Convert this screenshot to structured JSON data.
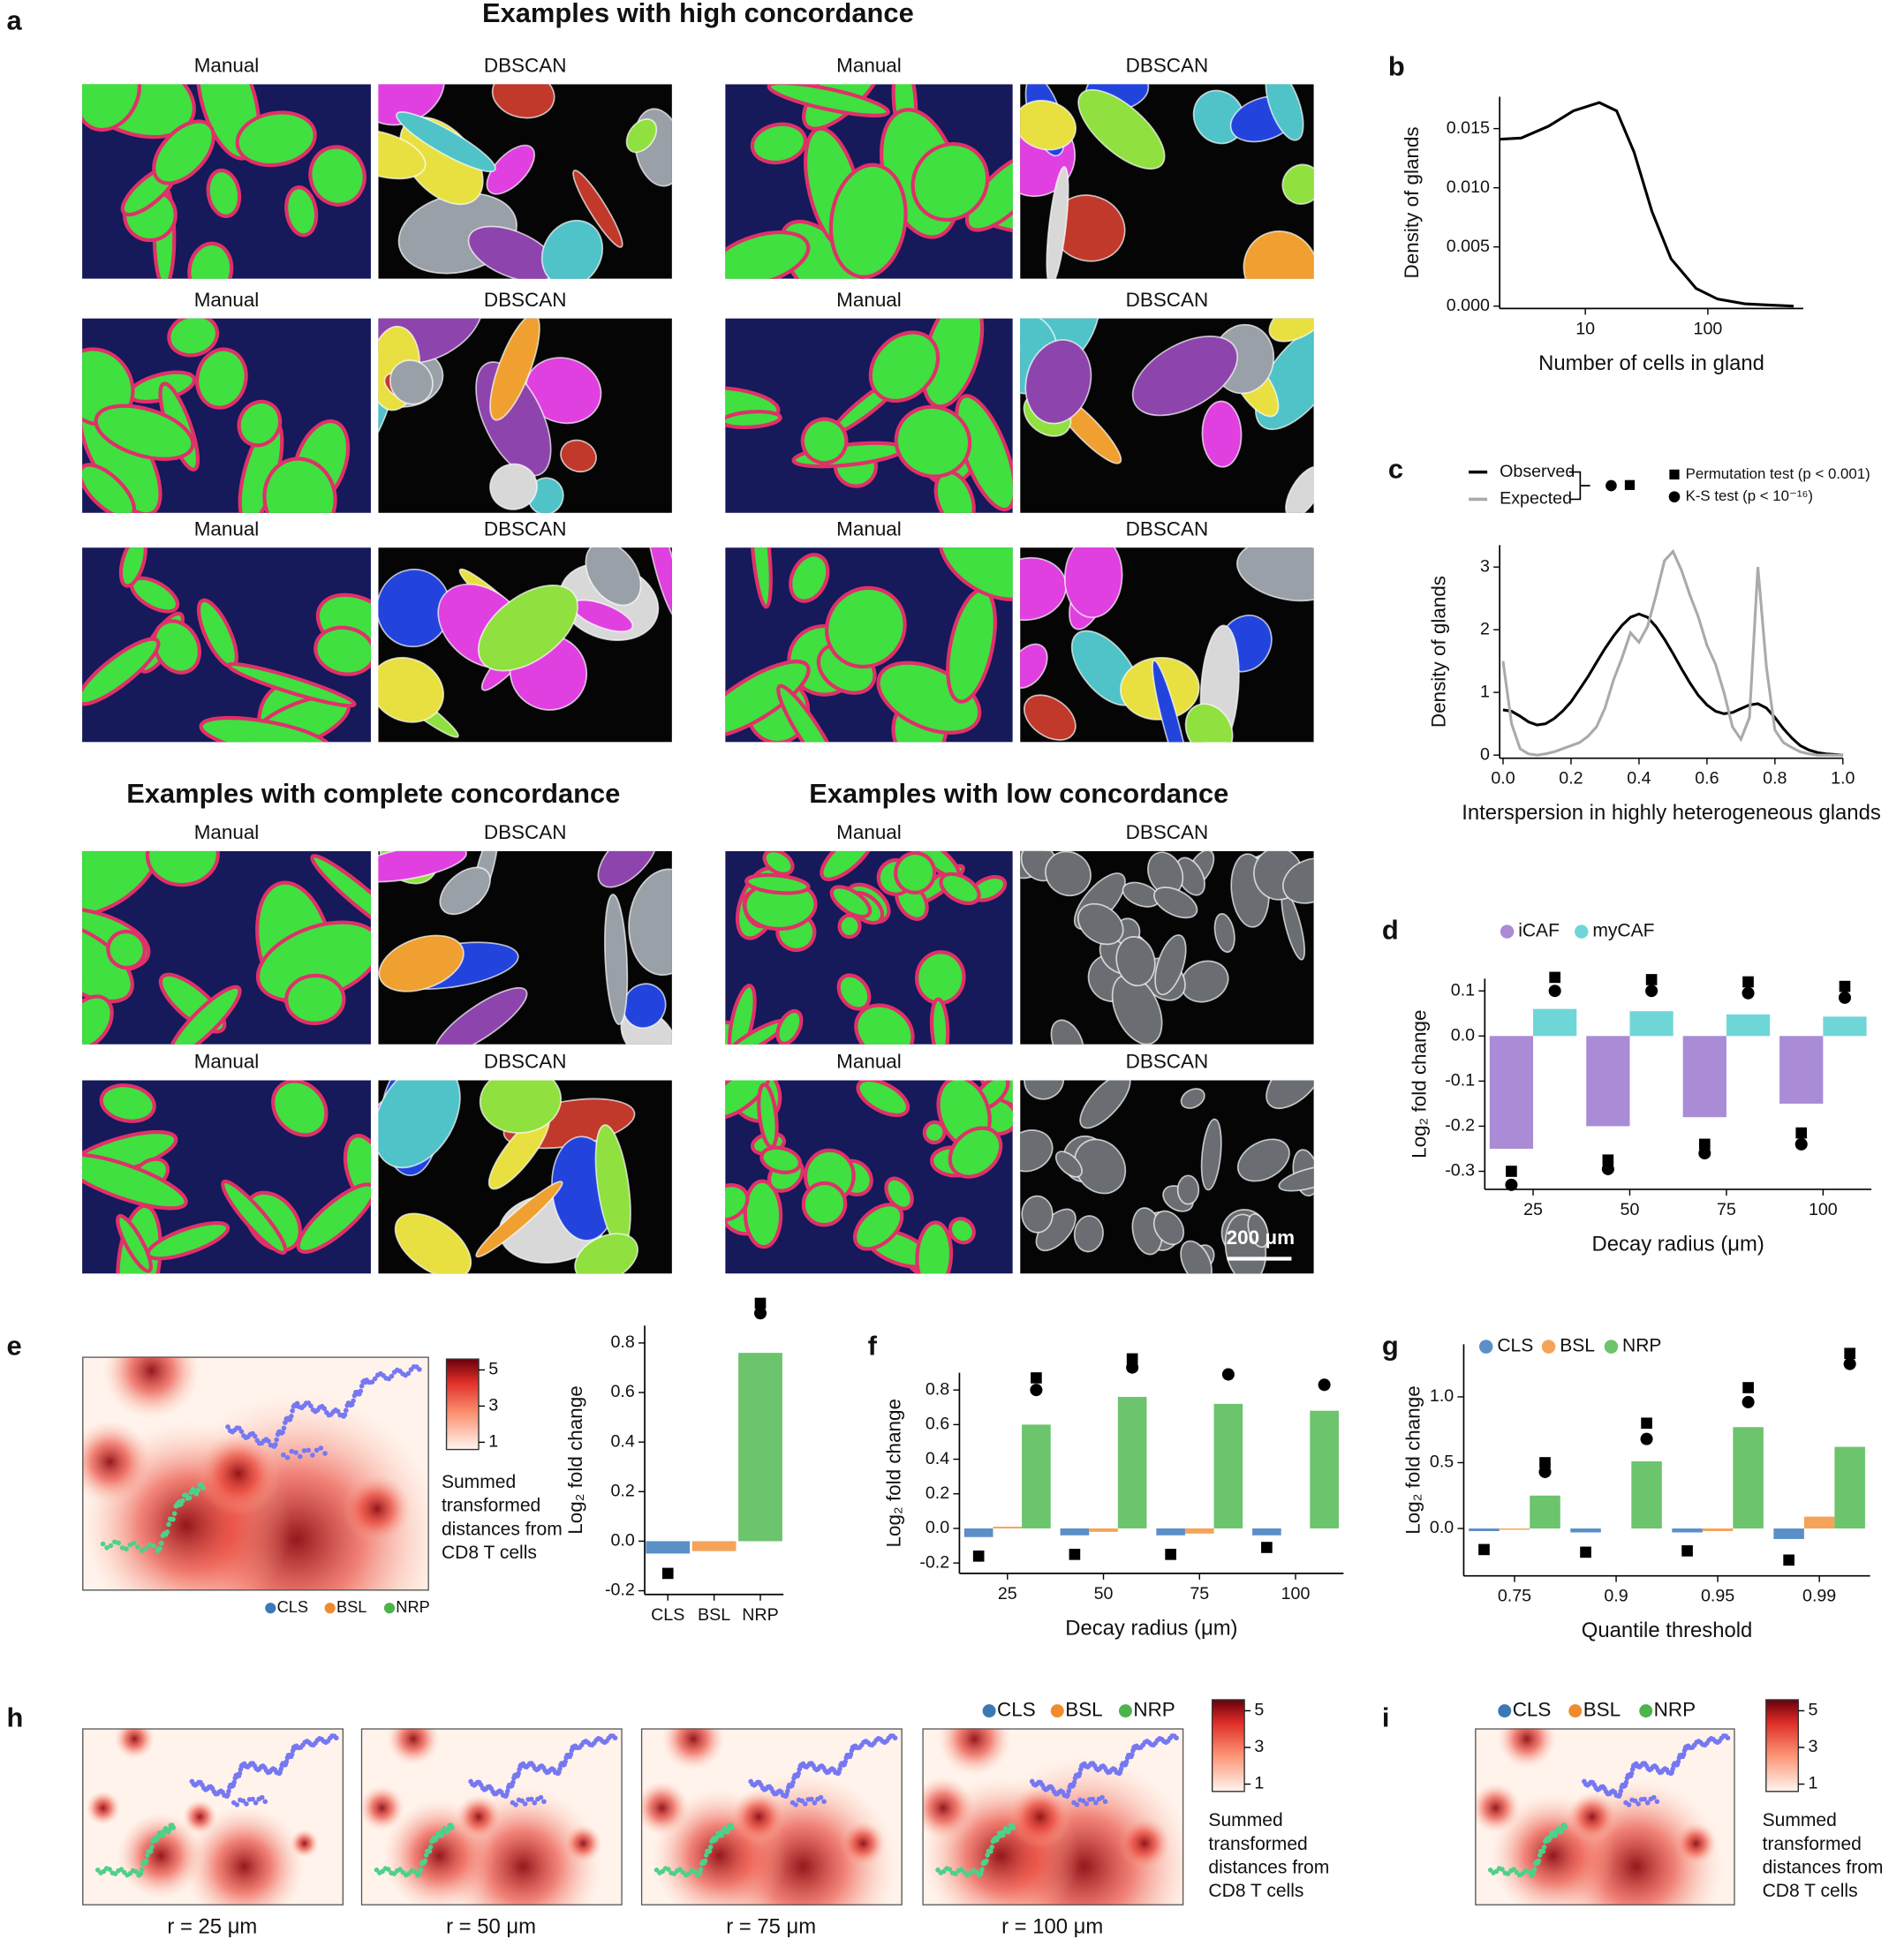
{
  "panel_labels": [
    "a",
    "b",
    "c",
    "d",
    "e",
    "f",
    "g",
    "h",
    "i"
  ],
  "figure_a": {
    "sections": [
      {
        "title": "Examples with high concordance",
        "rows": [
          [
            "Manual",
            "DBSCAN",
            "Manual",
            "DBSCAN"
          ],
          [
            "Manual",
            "DBSCAN",
            "Manual",
            "DBSCAN"
          ],
          [
            "Manual",
            "DBSCAN",
            "Manual",
            "DBSCAN"
          ]
        ]
      },
      {
        "title": "Examples with complete concordance",
        "rows": [
          [
            "Manual",
            "DBSCAN"
          ],
          [
            "Manual",
            "DBSCAN"
          ]
        ]
      },
      {
        "title": "Examples with low concordance",
        "rows": [
          [
            "Manual",
            "DBSCAN"
          ],
          [
            "Manual",
            "DBSCAN"
          ]
        ]
      }
    ],
    "scale_bar": "200 μm"
  },
  "chart_data": [
    {
      "type": "line",
      "xlabel": "Number of cells in gland",
      "ylabel": "Density of glands",
      "xscale": "log",
      "xlim": [
        2,
        600
      ],
      "ylim": [
        -0.0002,
        0.0177
      ],
      "xticks": [
        10,
        100
      ],
      "yticks": [
        {
          "value": 0,
          "label": "0.000"
        },
        {
          "value": 0.005,
          "label": "0.005"
        },
        {
          "value": 0.01,
          "label": "0.010"
        },
        {
          "value": 0.015,
          "label": "0.015"
        }
      ],
      "x": [
        2,
        3,
        5,
        8,
        13,
        18,
        25,
        35,
        50,
        80,
        120,
        200,
        300,
        500
      ],
      "series": [
        {
          "color": "#000000",
          "values": [
            0.0141,
            0.0142,
            0.0152,
            0.0165,
            0.0172,
            0.0165,
            0.013,
            0.008,
            0.004,
            0.0015,
            0.0006,
            0.0002,
            0.0001,
            0.0
          ]
        }
      ]
    },
    {
      "type": "line",
      "xlabel": "Interspersion in highly heterogeneous glands",
      "ylabel": "Density of glands",
      "xlim": [
        -0.01,
        1.0
      ],
      "ylim": [
        -0.05,
        3.35
      ],
      "xticks": [
        {
          "value": 0,
          "label": "0.0"
        },
        0.2,
        0.4,
        0.6,
        0.8,
        {
          "value": 1,
          "label": "1.0"
        }
      ],
      "yticks": [
        0,
        1,
        2,
        3
      ],
      "x": [
        0,
        0.025,
        0.05,
        0.075,
        0.1,
        0.125,
        0.15,
        0.175,
        0.2,
        0.225,
        0.25,
        0.275,
        0.3,
        0.325,
        0.35,
        0.375,
        0.4,
        0.425,
        0.45,
        0.475,
        0.5,
        0.525,
        0.55,
        0.575,
        0.6,
        0.625,
        0.65,
        0.675,
        0.7,
        0.725,
        0.75,
        0.775,
        0.8,
        0.825,
        0.85,
        0.875,
        0.9,
        0.925,
        0.95,
        0.975,
        1.0
      ],
      "series": [
        {
          "name": "Observed",
          "color": "#000000",
          "values": [
            0.72,
            0.7,
            0.62,
            0.53,
            0.48,
            0.5,
            0.58,
            0.7,
            0.85,
            1.05,
            1.25,
            1.48,
            1.7,
            1.9,
            2.07,
            2.2,
            2.25,
            2.2,
            2.05,
            1.85,
            1.62,
            1.38,
            1.15,
            0.95,
            0.8,
            0.7,
            0.66,
            0.68,
            0.74,
            0.8,
            0.82,
            0.75,
            0.6,
            0.42,
            0.27,
            0.15,
            0.08,
            0.04,
            0.02,
            0.01,
            0.0
          ]
        },
        {
          "name": "Expected",
          "color": "#aaaaaa",
          "values": [
            1.5,
            0.5,
            0.1,
            0.02,
            0.0,
            0.02,
            0.05,
            0.1,
            0.15,
            0.2,
            0.3,
            0.45,
            0.75,
            1.2,
            1.55,
            1.95,
            1.8,
            2.05,
            2.55,
            3.1,
            3.25,
            2.95,
            2.55,
            2.2,
            1.75,
            1.45,
            1.0,
            0.45,
            0.25,
            0.6,
            3.0,
            1.4,
            0.4,
            0.2,
            0.12,
            0.05,
            0.02,
            0.0,
            0.0,
            0.0,
            0.0
          ]
        }
      ],
      "tests": [
        "Permutation test (p < 0.001)",
        "K-S test (p < 10⁻¹⁶)"
      ]
    },
    {
      "type": "bar",
      "xlabel": "Decay radius (μm)",
      "ylabel": "Log₂ fold change",
      "legend": "above",
      "categories": [
        "25",
        "50",
        "75",
        "100"
      ],
      "ylim": [
        -0.34,
        0.127
      ],
      "yticks": [
        -0.3,
        -0.2,
        -0.1,
        {
          "value": 0,
          "label": "0.0"
        },
        0.1
      ],
      "series": [
        {
          "name": "iCAF",
          "color": "#a98bd6",
          "values": [
            -0.25,
            -0.2,
            -0.18,
            -0.15
          ],
          "perm_test": [
            -0.3,
            -0.275,
            -0.24,
            -0.215
          ],
          "ks_test": [
            -0.33,
            -0.295,
            -0.26,
            -0.24
          ]
        },
        {
          "name": "myCAF",
          "color": "#6fd6d8",
          "values": [
            0.06,
            0.055,
            0.048,
            0.043
          ],
          "perm_test": [
            0.13,
            0.125,
            0.12,
            0.11
          ],
          "ks_test": [
            0.1,
            0.1,
            0.095,
            0.085
          ]
        }
      ]
    },
    {
      "type": "bar",
      "ylabel": "Log₂ fold change",
      "categories": [
        "CLS",
        "BSL",
        "NRP"
      ],
      "ylim": [
        -0.215,
        0.87
      ],
      "yticks": [
        -0.2,
        {
          "value": 0,
          "label": "0.0"
        },
        0.2,
        0.4,
        0.6,
        0.8
      ],
      "values": [
        -0.05,
        -0.04,
        0.76
      ],
      "colors": [
        "#5b8fc7",
        "#f5a35a",
        "#6cc46c"
      ],
      "perm_test": [
        -0.13,
        null,
        0.96
      ],
      "ks_test": [
        null,
        null,
        0.92
      ]
    },
    {
      "type": "bar",
      "xlabel": "Decay radius (μm)",
      "ylabel": "Log₂ fold change",
      "categories": [
        "25",
        "50",
        "75",
        "100"
      ],
      "ylim": [
        -0.26,
        0.9
      ],
      "yticks": [
        -0.2,
        {
          "value": 0,
          "label": "0.0"
        },
        0.2,
        0.4,
        0.6,
        0.8
      ],
      "series": [
        {
          "color": "#5b8fc7",
          "values": [
            -0.05,
            -0.04,
            -0.04,
            -0.04
          ],
          "perm_test": [
            -0.16,
            -0.15,
            -0.15,
            -0.11
          ],
          "ks_test": [
            null,
            null,
            null,
            null
          ]
        },
        {
          "color": "#f5a35a",
          "values": [
            0.01,
            -0.02,
            -0.03,
            0.0
          ],
          "perm_test": [
            null,
            null,
            null,
            null
          ],
          "ks_test": [
            null,
            null,
            null,
            null
          ]
        },
        {
          "color": "#6cc46c",
          "values": [
            0.6,
            0.76,
            0.72,
            0.68
          ],
          "perm_test": [
            0.87,
            0.98,
            null,
            null
          ],
          "ks_test": [
            0.8,
            0.93,
            0.89,
            0.83
          ]
        }
      ]
    },
    {
      "type": "bar",
      "xlabel": "Quantile threshold",
      "ylabel": "Log₂ fold change",
      "legend": "upper left",
      "categories": [
        "0.75",
        "0.9",
        "0.95",
        "0.99"
      ],
      "ylim": [
        -0.36,
        1.4
      ],
      "yticks": [
        {
          "value": 0,
          "label": "0.0"
        },
        0.5,
        {
          "value": 1,
          "label": "1.0"
        }
      ],
      "series": [
        {
          "name": "CLS",
          "color": "#5b8fc7",
          "values": [
            -0.02,
            -0.03,
            -0.03,
            -0.08
          ],
          "perm_test": [
            -0.16,
            -0.18,
            -0.17,
            -0.24
          ],
          "ks_test": [
            null,
            null,
            null,
            null
          ]
        },
        {
          "name": "BSL",
          "color": "#f5a35a",
          "values": [
            -0.01,
            0.0,
            -0.02,
            0.09
          ],
          "perm_test": [
            null,
            null,
            null,
            null
          ],
          "ks_test": [
            null,
            null,
            null,
            null
          ]
        },
        {
          "name": "NRP",
          "color": "#6cc46c",
          "values": [
            0.25,
            0.51,
            0.77,
            0.62
          ],
          "perm_test": [
            0.5,
            0.8,
            1.07,
            1.33
          ],
          "ks_test": [
            0.43,
            0.68,
            0.96,
            1.25
          ]
        }
      ]
    }
  ],
  "heatmaps": {
    "e": {
      "clim": [
        0.6,
        5.6
      ],
      "cticks": [
        1,
        3,
        5
      ],
      "colorbar_label": "Summed transformed distances from CD8 T cells",
      "legend": [
        {
          "name": "CLS",
          "color": "#3c78b5"
        },
        {
          "name": "BSL",
          "color": "#f08a2e"
        },
        {
          "name": "NRP",
          "color": "#4db34d"
        }
      ]
    },
    "h": {
      "clim": [
        0.6,
        5.6
      ],
      "cticks": [
        1,
        3,
        5
      ],
      "colorbar_label": "Summed transformed distances from CD8 T cells",
      "legend": [
        {
          "name": "CLS",
          "color": "#3c78b5"
        },
        {
          "name": "BSL",
          "color": "#f08a2e"
        },
        {
          "name": "NRP",
          "color": "#4db34d"
        }
      ],
      "panels": [
        "r = 25 μm",
        "r = 50 μm",
        "r = 75 μm",
        "r = 100 μm"
      ]
    },
    "i": {
      "clim": [
        0.6,
        5.6
      ],
      "cticks": [
        1,
        3,
        5
      ],
      "colorbar_label": "Summed transformed distances from CD8 T cells",
      "legend": [
        {
          "name": "CLS",
          "color": "#3c78b5"
        },
        {
          "name": "BSL",
          "color": "#f08a2e"
        },
        {
          "name": "NRP",
          "color": "#4db34d"
        }
      ]
    }
  }
}
